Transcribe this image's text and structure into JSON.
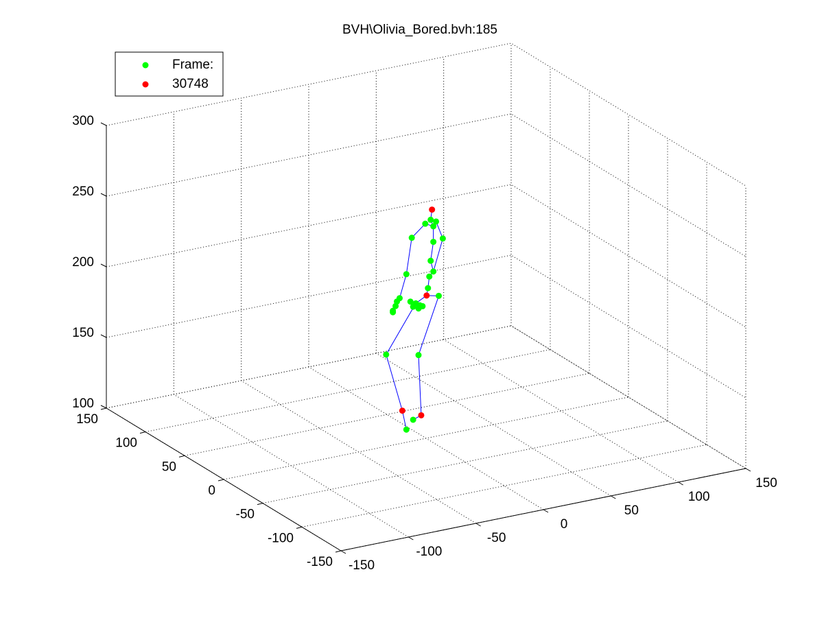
{
  "chart_data": {
    "type": "scatter3d",
    "title": "BVH\\Olivia_Bored.bvh:185",
    "xlim": [
      -150,
      150
    ],
    "ylim": [
      -150,
      150
    ],
    "zlim": [
      100,
      300
    ],
    "xticks": [
      -150,
      -100,
      -50,
      0,
      50,
      100,
      150
    ],
    "yticks": [
      -150,
      -100,
      -50,
      0,
      50,
      100,
      150
    ],
    "zticks": [
      100,
      150,
      200,
      250,
      300
    ],
    "grid": true,
    "legend": "upper left",
    "series": [
      {
        "name": "Frame:",
        "color": "#00ff00",
        "mode": "markers",
        "x": [
          15,
          19,
          11,
          17,
          1,
          24,
          17,
          15,
          17,
          -3,
          14,
          13,
          21,
          -8,
          -10,
          -11,
          -13,
          -13,
          0,
          4,
          7,
          2,
          6,
          9,
          -18,
          6,
          2,
          -3
        ],
        "y": [
          20,
          20,
          20,
          20,
          20,
          20,
          20,
          20,
          20,
          20,
          20,
          20,
          20,
          20,
          20,
          20,
          20,
          20,
          20,
          20,
          20,
          20,
          20,
          20,
          20,
          20,
          20,
          20
        ],
        "z": [
          245,
          243,
          243,
          240,
          235,
          230,
          229,
          216,
          208,
          210,
          205,
          197,
          190,
          194,
          192,
          189,
          186,
          185,
          190,
          188,
          186,
          186,
          184,
          185,
          156,
          151,
          106,
          100
        ]
      },
      {
        "name": "30748",
        "color": "#ff0000",
        "mode": "markers",
        "x": [
          16,
          12,
          -6,
          8
        ],
        "y": [
          20,
          20,
          20,
          20
        ],
        "z": [
          252,
          192,
          114,
          108
        ]
      },
      {
        "color": "#0000ff",
        "mode": "lines",
        "x": [
          16,
          15,
          17,
          17,
          15,
          17,
          14,
          13,
          12,
          null,
          12,
          21,
          6,
          8,
          2,
          null,
          12,
          4,
          -18,
          -6,
          -3,
          null,
          17,
          11,
          1,
          -3,
          -8,
          -10,
          -11,
          -13,
          null,
          19,
          24,
          17
        ],
        "y": [
          20,
          20,
          20,
          20,
          20,
          20,
          20,
          20,
          20,
          null,
          20,
          20,
          20,
          20,
          20,
          null,
          20,
          20,
          20,
          20,
          20,
          null,
          20,
          20,
          20,
          20,
          20,
          20,
          20,
          20,
          null,
          20,
          20,
          20
        ],
        "z": [
          252,
          245,
          240,
          229,
          216,
          208,
          205,
          197,
          192,
          null,
          192,
          190,
          151,
          108,
          106,
          null,
          192,
          188,
          156,
          114,
          100,
          null,
          240,
          243,
          235,
          210,
          194,
          192,
          189,
          186,
          null,
          243,
          230,
          208
        ]
      }
    ]
  }
}
